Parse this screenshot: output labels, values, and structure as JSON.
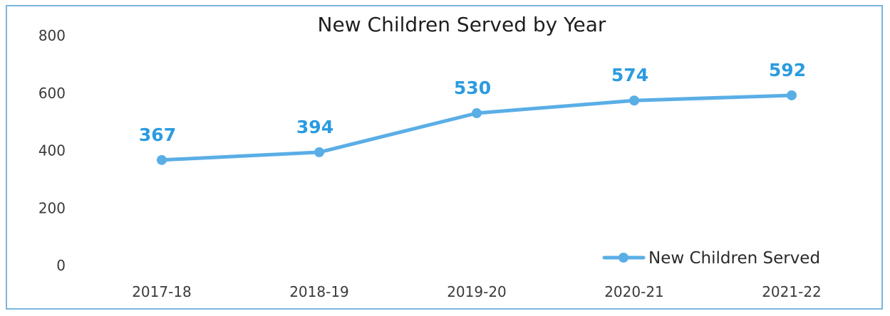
{
  "chart_data": {
    "type": "line",
    "title": "New Children Served by Year",
    "xlabel": "",
    "ylabel": "",
    "categories": [
      "2017-18",
      "2018-19",
      "2019-20",
      "2020-21",
      "2021-22"
    ],
    "series": [
      {
        "name": "New Children Served",
        "values": [
          367,
          394,
          530,
          574,
          592
        ]
      }
    ],
    "ylim": [
      0,
      800
    ],
    "yticks": [
      "0",
      "200",
      "400",
      "600",
      "800"
    ],
    "data_labels": [
      "367",
      "394",
      "530",
      "574",
      "592"
    ],
    "grid": false,
    "legend_position": "bottom-right",
    "colors": {
      "line": "#5aaee6",
      "marker": "#5aaee6",
      "label": "#2b9be0",
      "border": "#7ab6dd"
    }
  }
}
